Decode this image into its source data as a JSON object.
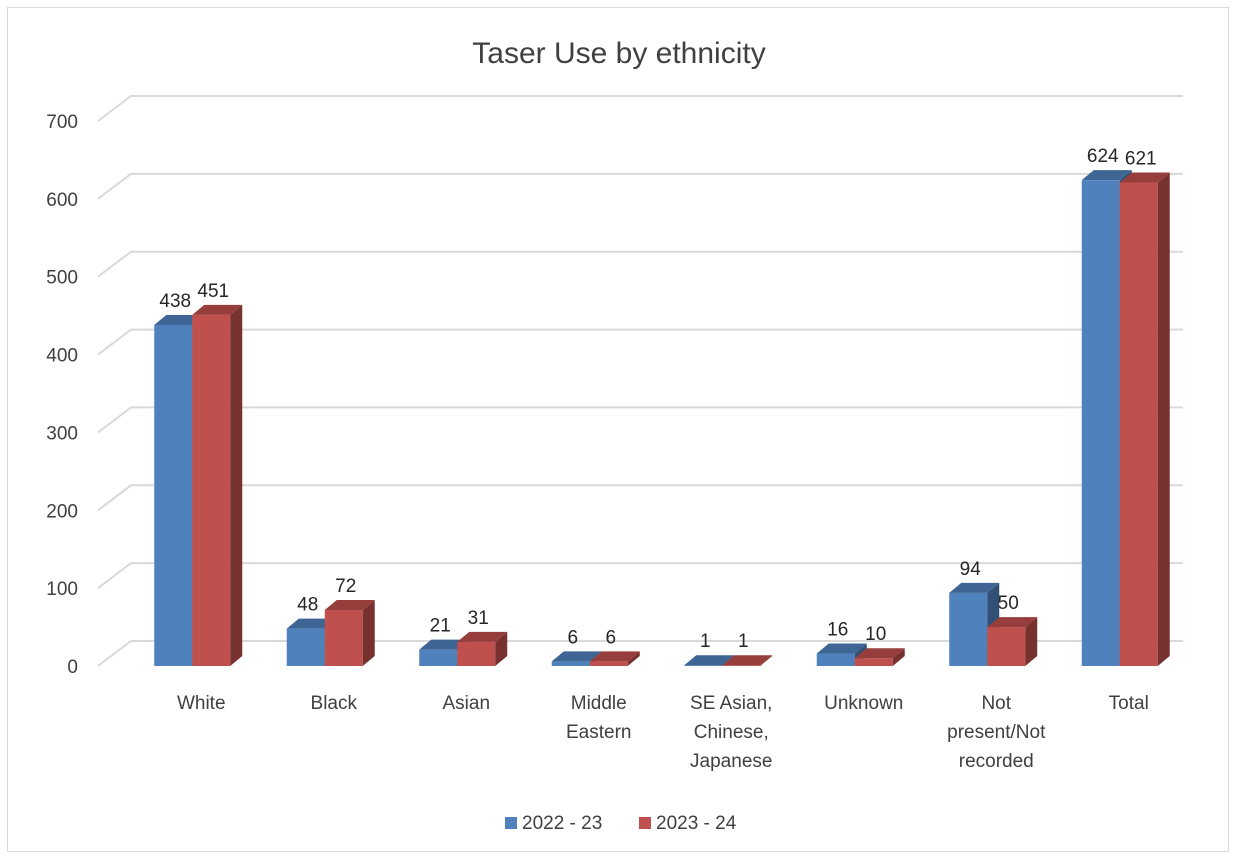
{
  "chart_data": {
    "type": "bar",
    "title": "Taser Use by ethnicity",
    "categories": [
      [
        "White"
      ],
      [
        "Black"
      ],
      [
        "Asian"
      ],
      [
        "Middle",
        "Eastern"
      ],
      [
        "SE Asian,",
        "Chinese,",
        "Japanese"
      ],
      [
        "Unknown"
      ],
      [
        "Not",
        "present/Not",
        "recorded"
      ],
      [
        "Total"
      ]
    ],
    "series": [
      {
        "name": "2022 - 23",
        "color": "#4f81bd",
        "values": [
          438,
          48,
          21,
          6,
          1,
          16,
          94,
          624
        ]
      },
      {
        "name": "2023 - 24",
        "color": "#c0504d",
        "values": [
          451,
          72,
          31,
          6,
          1,
          10,
          50,
          621
        ]
      }
    ],
    "ylim": [
      0,
      700
    ],
    "yticks": [
      0,
      100,
      200,
      300,
      400,
      500,
      600,
      700
    ],
    "grid": true,
    "legend_position": "bottom",
    "style": "3d-clustered-column"
  }
}
